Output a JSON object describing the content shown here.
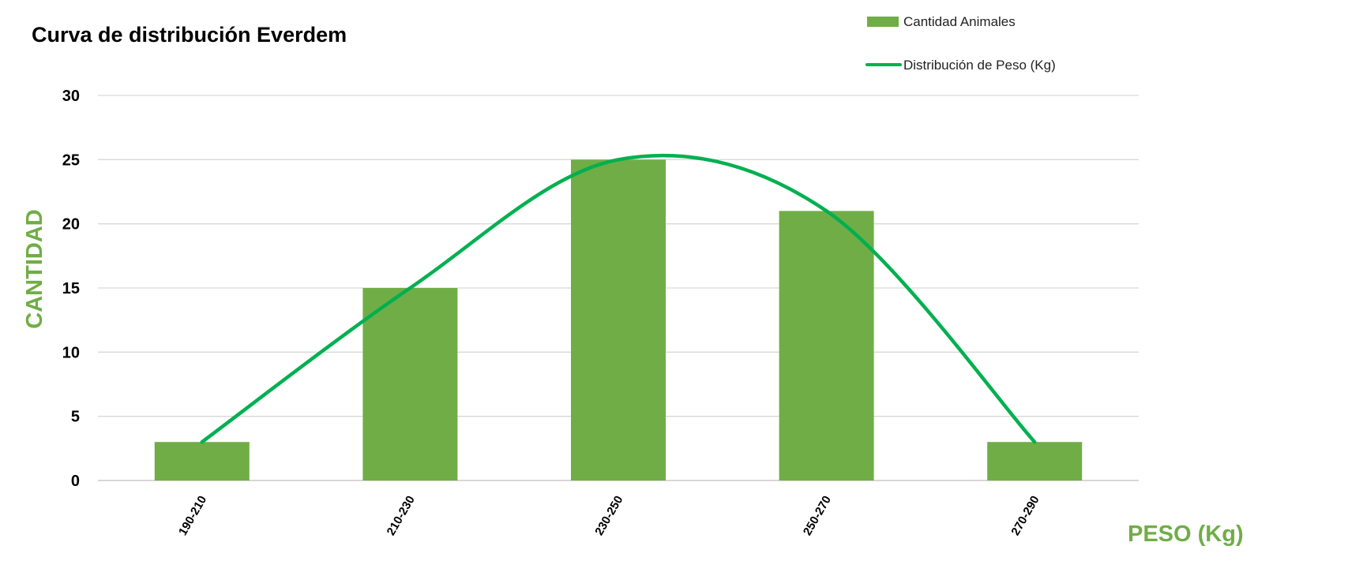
{
  "chart_data": {
    "type": "bar",
    "title": "Curva de distribución Everdem",
    "xlabel": "PESO (Kg)",
    "ylabel": "CANTIDAD",
    "categories": [
      "190-210",
      "210-230",
      "230-250",
      "250-270",
      "270-290"
    ],
    "series": [
      {
        "name": "Cantidad Animales",
        "type": "bar",
        "values": [
          3,
          15,
          25,
          21,
          3
        ],
        "color": "#70AD47"
      },
      {
        "name": "Distribución de Peso (Kg)",
        "type": "line",
        "smooth": true,
        "values": [
          3,
          15,
          25,
          21,
          3
        ],
        "color": "#00B050"
      }
    ],
    "ylim": [
      0,
      30
    ],
    "yticks": [
      "0",
      "5",
      "10",
      "15",
      "20",
      "25",
      "30"
    ],
    "grid": true,
    "legend_position": "top-right",
    "colors": {
      "axis_label": "#70AD47",
      "gridline": "#D9D9D9"
    }
  }
}
